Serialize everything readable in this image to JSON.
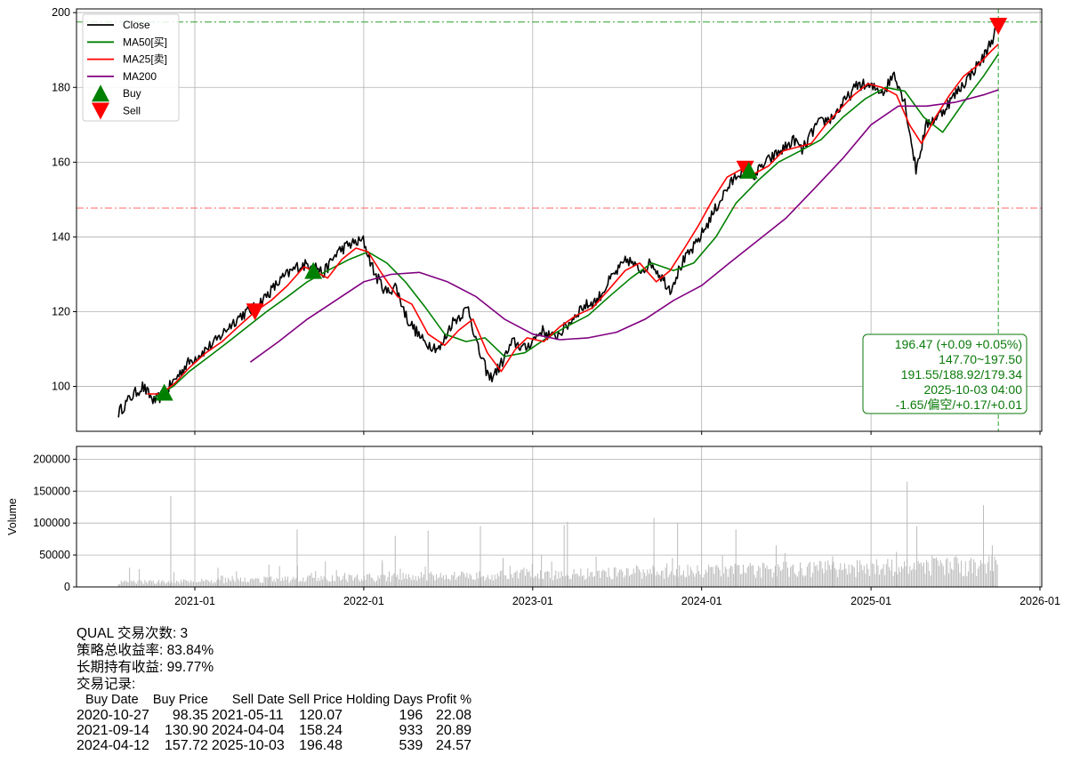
{
  "chart_data": [
    {
      "type": "line",
      "panel": "price",
      "x_type": "date",
      "x_ticks": [
        "2021-01",
        "2022-01",
        "2023-01",
        "2024-01",
        "2025-01",
        "2026-01"
      ],
      "ylim": [
        88,
        201
      ],
      "y_ticks": [
        100,
        120,
        140,
        160,
        180,
        200
      ],
      "grid": true,
      "legend_placement": "top-left",
      "legend": [
        {
          "label": "Close",
          "color": "#000000",
          "kind": "line"
        },
        {
          "label": "MA50[买]",
          "color": "#008000",
          "kind": "line"
        },
        {
          "label": "MA25[卖]",
          "color": "#ff0000",
          "kind": "line"
        },
        {
          "label": "MA200",
          "color": "#800080",
          "kind": "line"
        },
        {
          "label": "Buy",
          "color": "#008000",
          "kind": "triangle-up"
        },
        {
          "label": "Sell",
          "color": "#ff0000",
          "kind": "triangle-down"
        }
      ],
      "series": [
        {
          "name": "Close",
          "color": "#000000",
          "x": [
            "2020-07-20",
            "2020-08-15",
            "2020-09-10",
            "2020-10-05",
            "2020-10-27",
            "2020-11-20",
            "2020-12-15",
            "2021-01-15",
            "2021-02-15",
            "2021-03-15",
            "2021-04-10",
            "2021-05-11",
            "2021-06-10",
            "2021-07-10",
            "2021-08-10",
            "2021-09-14",
            "2021-10-05",
            "2021-11-05",
            "2021-12-01",
            "2021-12-31",
            "2022-01-25",
            "2022-02-20",
            "2022-03-10",
            "2022-04-05",
            "2022-05-10",
            "2022-06-15",
            "2022-07-10",
            "2022-08-15",
            "2022-09-05",
            "2022-09-30",
            "2022-10-20",
            "2022-11-20",
            "2022-12-15",
            "2023-01-20",
            "2023-02-15",
            "2023-03-15",
            "2023-04-15",
            "2023-05-20",
            "2023-06-20",
            "2023-07-25",
            "2023-08-20",
            "2023-09-15",
            "2023-10-25",
            "2023-11-20",
            "2023-12-20",
            "2024-01-20",
            "2024-02-20",
            "2024-03-20",
            "2024-04-04",
            "2024-04-20",
            "2024-05-20",
            "2024-06-20",
            "2024-07-20",
            "2024-08-05",
            "2024-09-05",
            "2024-10-10",
            "2024-11-10",
            "2024-12-05",
            "2024-12-31",
            "2025-01-30",
            "2025-02-20",
            "2025-03-15",
            "2025-04-08",
            "2025-05-01",
            "2025-06-01",
            "2025-07-01",
            "2025-08-01",
            "2025-09-01",
            "2025-10-03"
          ],
          "values": [
            93,
            97,
            100,
            96,
            98,
            102,
            106,
            109,
            112,
            116,
            119,
            121,
            125,
            129,
            132,
            133,
            130,
            136,
            138,
            139,
            130,
            125,
            127,
            118,
            112,
            110,
            117,
            121,
            110,
            102,
            105,
            112,
            110,
            115,
            113,
            116,
            121,
            123,
            129,
            134,
            131,
            133,
            126,
            133,
            138,
            145,
            152,
            157,
            158,
            156,
            160,
            163,
            166,
            163,
            170,
            172,
            177,
            181,
            180,
            179,
            184,
            176,
            158,
            170,
            173,
            178,
            183,
            188,
            196.47
          ]
        },
        {
          "name": "MA50[买]",
          "color": "#008000",
          "x": [
            "2020-10-05",
            "2020-11-15",
            "2020-12-20",
            "2021-02-01",
            "2021-03-15",
            "2021-04-25",
            "2021-06-05",
            "2021-07-20",
            "2021-09-01",
            "2021-10-15",
            "2021-12-01",
            "2022-01-10",
            "2022-02-20",
            "2022-04-01",
            "2022-05-15",
            "2022-06-25",
            "2022-08-10",
            "2022-09-20",
            "2022-11-01",
            "2022-12-15",
            "2023-02-01",
            "2023-03-15",
            "2023-05-01",
            "2023-06-15",
            "2023-08-01",
            "2023-09-15",
            "2023-11-01",
            "2023-12-15",
            "2024-02-01",
            "2024-03-15",
            "2024-05-01",
            "2024-06-15",
            "2024-08-01",
            "2024-09-15",
            "2024-11-01",
            "2024-12-20",
            "2025-02-01",
            "2025-03-15",
            "2025-04-25",
            "2025-06-05",
            "2025-07-20",
            "2025-09-01",
            "2025-10-03"
          ],
          "values": [
            97,
            100,
            104,
            108,
            112,
            116,
            120,
            124,
            128,
            131,
            134,
            136,
            133,
            128,
            121,
            114,
            112,
            113,
            108,
            109,
            113,
            116,
            119,
            124,
            129,
            133,
            131,
            133,
            140,
            149,
            155,
            160,
            163,
            166,
            172,
            177,
            180,
            179,
            172,
            168,
            176,
            183,
            188.92
          ]
        },
        {
          "name": "MA25[卖]",
          "color": "#ff0000",
          "x": [
            "2020-09-20",
            "2020-10-20",
            "2020-11-20",
            "2020-12-20",
            "2021-01-25",
            "2021-03-01",
            "2021-04-05",
            "2021-05-11",
            "2021-06-15",
            "2021-07-20",
            "2021-08-25",
            "2021-09-14",
            "2021-10-15",
            "2021-11-15",
            "2021-12-15",
            "2022-01-10",
            "2022-02-10",
            "2022-03-15",
            "2022-04-15",
            "2022-05-20",
            "2022-06-25",
            "2022-07-25",
            "2022-08-25",
            "2022-09-25",
            "2022-10-25",
            "2022-11-25",
            "2022-12-20",
            "2023-01-25",
            "2023-03-01",
            "2023-04-05",
            "2023-05-10",
            "2023-06-15",
            "2023-07-20",
            "2023-08-20",
            "2023-09-25",
            "2023-10-25",
            "2023-11-25",
            "2023-12-25",
            "2024-01-25",
            "2024-02-25",
            "2024-03-25",
            "2024-04-25",
            "2024-05-25",
            "2024-06-25",
            "2024-07-25",
            "2024-08-25",
            "2024-09-25",
            "2024-10-25",
            "2024-11-25",
            "2024-12-25",
            "2025-01-25",
            "2025-02-25",
            "2025-03-25",
            "2025-04-20",
            "2025-05-20",
            "2025-06-20",
            "2025-07-20",
            "2025-08-20",
            "2025-09-20",
            "2025-10-03"
          ],
          "values": [
            98,
            98,
            101,
            105,
            109,
            112,
            116,
            120,
            123,
            127,
            132,
            131,
            129,
            134,
            137,
            136,
            130,
            124,
            122,
            114,
            111,
            115,
            118,
            109,
            104,
            110,
            113,
            112,
            116,
            119,
            121,
            126,
            131,
            133,
            128,
            131,
            137,
            143,
            150,
            156,
            158,
            157,
            159,
            163,
            164,
            165,
            170,
            174,
            178,
            181,
            180,
            178,
            170,
            165,
            172,
            178,
            183,
            186,
            190,
            191.55
          ]
        },
        {
          "name": "MA200",
          "color": "#800080",
          "x": [
            "2021-05-01",
            "2021-07-01",
            "2021-09-01",
            "2021-11-01",
            "2022-01-01",
            "2022-03-01",
            "2022-05-01",
            "2022-07-01",
            "2022-09-01",
            "2022-11-01",
            "2023-01-01",
            "2023-03-01",
            "2023-05-01",
            "2023-07-01",
            "2023-09-01",
            "2023-11-01",
            "2024-01-01",
            "2024-03-01",
            "2024-05-01",
            "2024-07-01",
            "2024-09-01",
            "2024-11-01",
            "2025-01-01",
            "2025-03-01",
            "2025-05-01",
            "2025-07-01",
            "2025-09-01",
            "2025-10-03"
          ],
          "values": [
            106.5,
            112,
            118,
            123,
            128,
            130,
            130.5,
            128,
            124,
            118,
            114,
            112.5,
            113,
            114.5,
            118,
            123,
            127,
            133,
            139,
            145,
            153,
            161,
            170,
            175,
            175,
            176,
            178,
            179.34
          ]
        }
      ],
      "markers": [
        {
          "type": "buy",
          "date": "2020-10-27",
          "value": 98.35
        },
        {
          "type": "sell",
          "date": "2021-05-11",
          "value": 120.07
        },
        {
          "type": "buy",
          "date": "2021-09-14",
          "value": 130.9
        },
        {
          "type": "sell",
          "date": "2024-04-04",
          "value": 158.24
        },
        {
          "type": "buy",
          "date": "2024-04-12",
          "value": 157.72
        },
        {
          "type": "sell",
          "date": "2025-10-03",
          "value": 196.48
        }
      ],
      "reference_lines": [
        {
          "axis": "y",
          "value": 197.5,
          "color": "#2ca02c",
          "style": "dashdot"
        },
        {
          "axis": "y",
          "value": 147.7,
          "color": "#ff6666",
          "style": "dashdot"
        },
        {
          "axis": "x",
          "value": "2025-10-03",
          "color": "#2ca02c",
          "style": "dashed"
        }
      ],
      "annotation": {
        "color": "#0a7a0a",
        "lines": [
          "196.47 (+0.09 +0.05%)",
          "147.70~197.50",
          "191.55/188.92/179.34",
          "2025-10-03 04:00",
          "-1.65/偏空/+0.17/+0.01"
        ]
      }
    },
    {
      "type": "bar",
      "panel": "volume",
      "ylabel": "Volume",
      "ylim": [
        0,
        220000
      ],
      "y_ticks": [
        0,
        50000,
        100000,
        150000,
        200000
      ],
      "y_tick_labels": [
        "0",
        "50000",
        "100000",
        "150000",
        "200000"
      ],
      "color": "#bbbbbb",
      "grid": true,
      "spikes": [
        {
          "date": "2020-11-10",
          "value": 142000
        },
        {
          "date": "2021-02-20",
          "value": 30000
        },
        {
          "date": "2021-06-10",
          "value": 35000
        },
        {
          "date": "2021-08-10",
          "value": 90000
        },
        {
          "date": "2021-10-10",
          "value": 40000
        },
        {
          "date": "2022-02-10",
          "value": 42000
        },
        {
          "date": "2022-03-10",
          "value": 80000
        },
        {
          "date": "2022-05-20",
          "value": 88000
        },
        {
          "date": "2022-09-10",
          "value": 95000
        },
        {
          "date": "2023-01-20",
          "value": 50000
        },
        {
          "date": "2023-03-10",
          "value": 97000
        },
        {
          "date": "2023-03-17",
          "value": 102000
        },
        {
          "date": "2023-09-20",
          "value": 108000
        },
        {
          "date": "2023-11-10",
          "value": 100000
        },
        {
          "date": "2024-03-15",
          "value": 90000
        },
        {
          "date": "2024-06-10",
          "value": 65000
        },
        {
          "date": "2024-10-10",
          "value": 48000
        },
        {
          "date": "2025-02-25",
          "value": 55000
        },
        {
          "date": "2025-03-20",
          "value": 165000
        },
        {
          "date": "2025-04-10",
          "value": 95000
        },
        {
          "date": "2025-09-01",
          "value": 128000
        },
        {
          "date": "2025-09-20",
          "value": 65000
        }
      ]
    }
  ],
  "report": {
    "lines": [
      "QUAL 交易次数: 3",
      "策略总收益率: 83.84%",
      "长期持有收益: 99.77%",
      "交易记录:"
    ],
    "columns": [
      "Buy Date",
      "Buy Price",
      "Sell Date",
      "Sell Price",
      "Holding Days",
      "Profit %"
    ],
    "rows": [
      [
        "2020-10-27",
        "98.35",
        "2021-05-11",
        "120.07",
        "196",
        "22.08"
      ],
      [
        "2021-09-14",
        "130.90",
        "2024-04-04",
        "158.24",
        "933",
        "20.89"
      ],
      [
        "2024-04-12",
        "157.72",
        "2025-10-03",
        "196.48",
        "539",
        "24.57"
      ]
    ]
  }
}
